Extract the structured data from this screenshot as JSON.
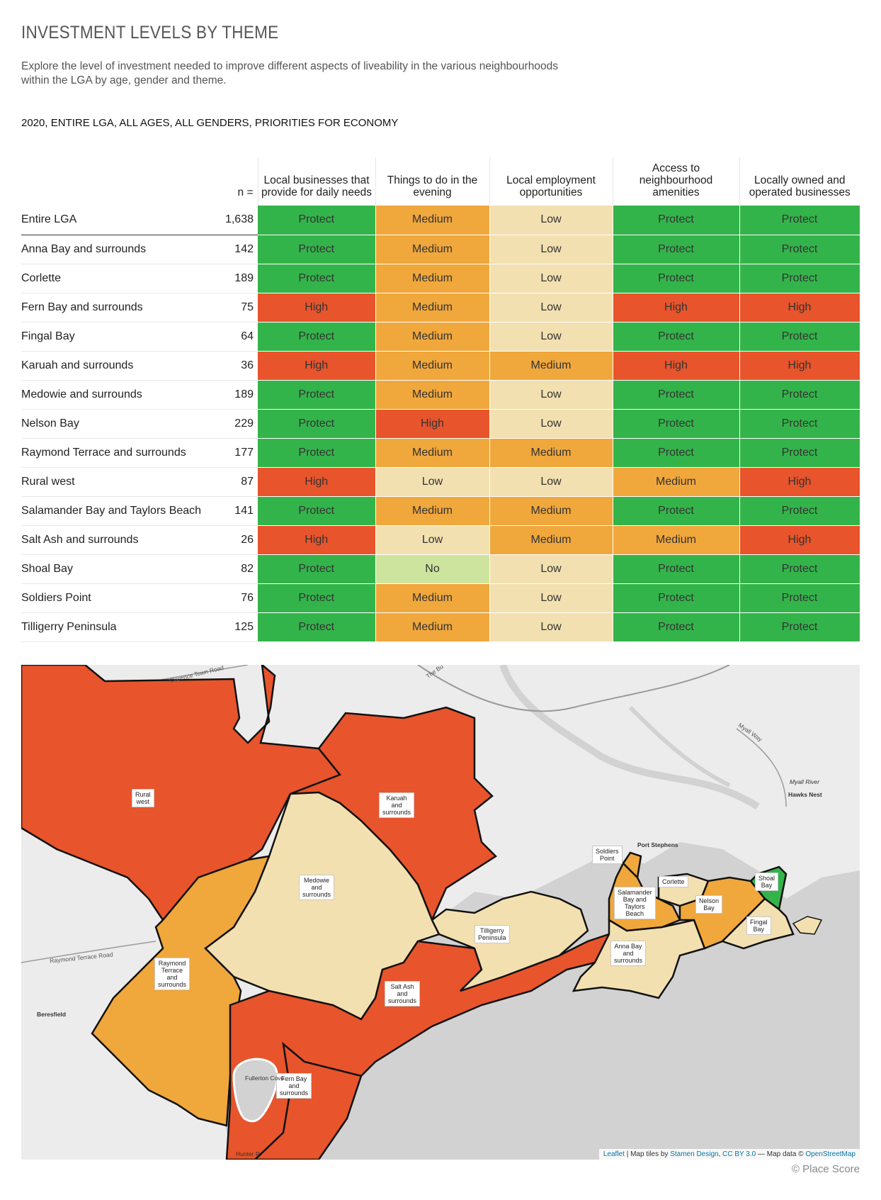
{
  "title": "INVESTMENT LEVELS BY THEME",
  "subtitle": "Explore the level of investment needed to improve different aspects of liveability in the various neighbourhoods within the LGA by age, gender and theme.",
  "filter_line": "2020, ENTIRE LGA, ALL AGES, ALL GENDERS, PRIORITIES FOR ECONOMY",
  "colors": {
    "Protect": "#33b44a",
    "Medium": "#f0a73c",
    "Low": "#f3e0b0",
    "High": "#e8542b",
    "No": "#cde49e"
  },
  "table": {
    "n_header": "n =",
    "columns": [
      "Local businesses that provide for daily needs",
      "Things to do in the evening",
      "Local employment opportunities",
      "Access to neighbourhood amenities",
      "Locally owned and operated businesses"
    ],
    "rows": [
      {
        "name": "Entire LGA",
        "n": "1,638",
        "values": [
          "Protect",
          "Medium",
          "Low",
          "Protect",
          "Protect"
        ]
      },
      {
        "name": "Anna Bay and surrounds",
        "n": "142",
        "values": [
          "Protect",
          "Medium",
          "Low",
          "Protect",
          "Protect"
        ]
      },
      {
        "name": "Corlette",
        "n": "189",
        "values": [
          "Protect",
          "Medium",
          "Low",
          "Protect",
          "Protect"
        ]
      },
      {
        "name": "Fern Bay and surrounds",
        "n": "75",
        "values": [
          "High",
          "Medium",
          "Low",
          "High",
          "High"
        ]
      },
      {
        "name": "Fingal Bay",
        "n": "64",
        "values": [
          "Protect",
          "Medium",
          "Low",
          "Protect",
          "Protect"
        ]
      },
      {
        "name": "Karuah and surrounds",
        "n": "36",
        "values": [
          "High",
          "Medium",
          "Medium",
          "High",
          "High"
        ]
      },
      {
        "name": "Medowie and surrounds",
        "n": "189",
        "values": [
          "Protect",
          "Medium",
          "Low",
          "Protect",
          "Protect"
        ]
      },
      {
        "name": "Nelson Bay",
        "n": "229",
        "values": [
          "Protect",
          "High",
          "Low",
          "Protect",
          "Protect"
        ]
      },
      {
        "name": "Raymond Terrace and surrounds",
        "n": "177",
        "values": [
          "Protect",
          "Medium",
          "Medium",
          "Protect",
          "Protect"
        ]
      },
      {
        "name": "Rural west",
        "n": "87",
        "values": [
          "High",
          "Low",
          "Low",
          "Medium",
          "High"
        ]
      },
      {
        "name": "Salamander Bay and Taylors Beach",
        "n": "141",
        "values": [
          "Protect",
          "Medium",
          "Medium",
          "Protect",
          "Protect"
        ]
      },
      {
        "name": "Salt Ash and surrounds",
        "n": "26",
        "values": [
          "High",
          "Low",
          "Medium",
          "Medium",
          "High"
        ]
      },
      {
        "name": "Shoal Bay",
        "n": "82",
        "values": [
          "Protect",
          "No",
          "Low",
          "Protect",
          "Protect"
        ]
      },
      {
        "name": "Soldiers Point",
        "n": "76",
        "values": [
          "Protect",
          "Medium",
          "Low",
          "Protect",
          "Protect"
        ]
      },
      {
        "name": "Tilligerry Peninsula",
        "n": "125",
        "values": [
          "Protect",
          "Medium",
          "Low",
          "Protect",
          "Protect"
        ]
      }
    ]
  },
  "map": {
    "labels": {
      "rural_west": "Rural\nwest",
      "karuah": "Karuah\nand\nsurrounds",
      "medowie": "Medowie\nand\nsurrounds",
      "raymond": "Raymond\nTerrace\nand\nsurrounds",
      "salt_ash": "Salt Ash\nand\nsurrounds",
      "fern_bay": "Fern Bay\nand\nsurrounds",
      "tilligerry": "Tilligerry\nPeninsula",
      "anna_bay": "Anna Bay\nand\nsurrounds",
      "salamander": "Salamander\nBay and\nTaylors\nBeach",
      "soldiers": "Soldiers\nPoint",
      "corlette": "Corlette",
      "nelson": "Nelson\nBay",
      "shoal": "Shoal\nBay",
      "fingal": "Fingal\nBay"
    },
    "roads": {
      "clarence": "Clarence Town Road",
      "raymond_rd": "Raymond Terrace Road",
      "myall": "Myall Way",
      "the_b": "The Bu"
    },
    "places": {
      "port_stephens": "Port Stephens",
      "hawks_nest": "Hawks Nest",
      "myall_river": "Myall River",
      "beresfield": "Beresfield",
      "fullerton": "Fullerton Cove",
      "hunter": "Hunter R"
    },
    "attribution": {
      "leaflet": "Leaflet",
      "tiles_prefix": "| Map tiles by",
      "stamen": "Stamen Design",
      "cc": "CC BY 3.0",
      "data_prefix": "— Map data ©",
      "osm": "OpenStreetMap"
    }
  },
  "footer": "© Place Score"
}
